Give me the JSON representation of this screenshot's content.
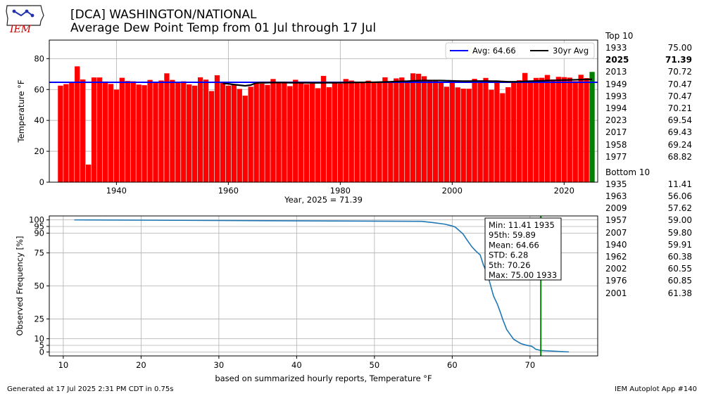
{
  "header": {
    "title_line1": "[DCA] WASHINGTON/NATIONAL",
    "title_line2": "Average Dew Point Temp from 01 Jul through 17 Jul"
  },
  "logo": {
    "text": "IEM"
  },
  "footer": {
    "generated": "Generated at 17 Jul 2025 2:31 PM CDT in 0.75s",
    "app": "IEM Autoplot App #140"
  },
  "top10": {
    "title": "Top 10",
    "rows": [
      {
        "year": "1933",
        "value": "75.00",
        "bold": false
      },
      {
        "year": "2025",
        "value": "71.39",
        "bold": true
      },
      {
        "year": "2013",
        "value": "70.72",
        "bold": false
      },
      {
        "year": "1949",
        "value": "70.47",
        "bold": false
      },
      {
        "year": "1993",
        "value": "70.47",
        "bold": false
      },
      {
        "year": "1994",
        "value": "70.21",
        "bold": false
      },
      {
        "year": "2023",
        "value": "69.54",
        "bold": false
      },
      {
        "year": "2017",
        "value": "69.43",
        "bold": false
      },
      {
        "year": "1958",
        "value": "69.24",
        "bold": false
      },
      {
        "year": "1977",
        "value": "68.82",
        "bold": false
      }
    ]
  },
  "bottom10": {
    "title": "Bottom 10",
    "rows": [
      {
        "year": "1935",
        "value": "11.41",
        "bold": false
      },
      {
        "year": "1963",
        "value": "56.06",
        "bold": false
      },
      {
        "year": "2009",
        "value": "57.62",
        "bold": false
      },
      {
        "year": "1957",
        "value": "59.00",
        "bold": false
      },
      {
        "year": "2007",
        "value": "59.80",
        "bold": false
      },
      {
        "year": "1940",
        "value": "59.91",
        "bold": false
      },
      {
        "year": "1962",
        "value": "60.38",
        "bold": false
      },
      {
        "year": "2002",
        "value": "60.55",
        "bold": false
      },
      {
        "year": "1976",
        "value": "60.85",
        "bold": false
      },
      {
        "year": "2001",
        "value": "61.38",
        "bold": false
      }
    ]
  },
  "chart_data": [
    {
      "type": "bar",
      "title": "",
      "xlabel": "Year, 2025 = 71.39",
      "ylabel": "Temperature °F",
      "xlim": [
        1928,
        2026
      ],
      "ylim": [
        0,
        92
      ],
      "xticks": [
        1940,
        1960,
        1980,
        2000,
        2020
      ],
      "yticks": [
        0,
        20,
        40,
        60,
        80
      ],
      "grid": true,
      "legend_position": "top-right",
      "bar_color": "#ff0000",
      "current_year": 2025,
      "current_year_color": "#008000",
      "years": [
        1930,
        1931,
        1932,
        1933,
        1934,
        1935,
        1936,
        1937,
        1938,
        1939,
        1940,
        1941,
        1942,
        1943,
        1944,
        1945,
        1946,
        1947,
        1948,
        1949,
        1950,
        1951,
        1952,
        1953,
        1954,
        1955,
        1956,
        1957,
        1958,
        1959,
        1960,
        1961,
        1962,
        1963,
        1964,
        1965,
        1966,
        1967,
        1968,
        1969,
        1970,
        1971,
        1972,
        1973,
        1974,
        1975,
        1976,
        1977,
        1978,
        1979,
        1980,
        1981,
        1982,
        1983,
        1984,
        1985,
        1986,
        1987,
        1988,
        1989,
        1990,
        1991,
        1992,
        1993,
        1994,
        1995,
        1996,
        1997,
        1998,
        1999,
        2000,
        2001,
        2002,
        2003,
        2004,
        2005,
        2006,
        2007,
        2008,
        2009,
        2010,
        2011,
        2012,
        2013,
        2014,
        2015,
        2016,
        2017,
        2018,
        2019,
        2020,
        2021,
        2022,
        2023,
        2024,
        2025
      ],
      "values": [
        62.5,
        63.5,
        64.2,
        75.0,
        66.5,
        11.41,
        67.8,
        67.8,
        65.2,
        63.6,
        59.91,
        67.6,
        65.5,
        65.3,
        63.2,
        62.8,
        66.2,
        64.2,
        65.8,
        70.47,
        66.2,
        64.8,
        65.3,
        63.3,
        62.5,
        67.9,
        66.4,
        59.0,
        69.24,
        64.9,
        62.5,
        63.0,
        60.38,
        56.06,
        61.8,
        64.0,
        63.8,
        63.0,
        66.8,
        64.5,
        64.0,
        62.2,
        66.3,
        65.0,
        63.5,
        63.8,
        60.85,
        68.82,
        61.5,
        64.2,
        63.8,
        66.8,
        65.8,
        65.0,
        64.5,
        65.7,
        64.5,
        65.2,
        67.9,
        65.0,
        67.2,
        67.8,
        65.5,
        70.47,
        70.21,
        68.6,
        66.2,
        65.4,
        64.5,
        61.8,
        65.9,
        61.38,
        60.55,
        60.5,
        66.9,
        65.2,
        67.5,
        59.8,
        64.3,
        57.62,
        61.5,
        64.5,
        66.0,
        70.72,
        64.8,
        67.5,
        67.6,
        69.43,
        66.5,
        68.2,
        68.0,
        67.7,
        65.4,
        69.54,
        67.4,
        71.39
      ],
      "series": [
        {
          "name": "Avg: 64.66",
          "color": "#0000ff",
          "y": 64.66
        },
        {
          "name": "30yr Avg",
          "color": "#000000",
          "x": [
            1959,
            1960,
            1961,
            1962,
            1963,
            1964,
            1965,
            1966,
            1967,
            1968,
            1969,
            1970,
            1971,
            1972,
            1973,
            1974,
            1975,
            1976,
            1977,
            1978,
            1979,
            1980,
            1981,
            1982,
            1983,
            1984,
            1985,
            1986,
            1987,
            1988,
            1989,
            1990,
            1991,
            1992,
            1993,
            1994,
            1995,
            1996,
            1997,
            1998,
            1999,
            2000,
            2001,
            2002,
            2003,
            2004,
            2005,
            2006,
            2007,
            2008,
            2009,
            2010,
            2011,
            2012,
            2013,
            2014,
            2015,
            2016,
            2017,
            2018,
            2019,
            2020,
            2021,
            2022,
            2023,
            2024,
            2025
          ],
          "y": [
            64.0,
            63.7,
            63.2,
            62.8,
            62.4,
            62.9,
            64.3,
            64.4,
            64.4,
            64.5,
            64.5,
            64.5,
            64.4,
            64.4,
            64.4,
            64.4,
            64.3,
            64.3,
            64.4,
            64.4,
            64.4,
            64.4,
            64.5,
            64.5,
            64.6,
            64.6,
            64.7,
            64.7,
            64.8,
            64.9,
            65.0,
            65.2,
            65.3,
            65.4,
            65.6,
            65.7,
            65.8,
            65.8,
            65.8,
            65.8,
            65.7,
            65.6,
            65.5,
            65.4,
            65.4,
            65.5,
            65.5,
            65.5,
            65.4,
            65.4,
            65.2,
            65.0,
            65.0,
            65.1,
            65.3,
            65.4,
            65.5,
            65.6,
            65.8,
            65.9,
            66.0,
            66.1,
            66.2,
            66.3,
            66.4,
            66.5,
            66.6
          ]
        }
      ]
    },
    {
      "type": "line",
      "title": "",
      "xlabel": "based on summarized hourly reports, Temperature °F",
      "ylabel": "Observed Frequency [%]",
      "xlim": [
        8.2,
        78.7
      ],
      "ylim": [
        -3,
        103
      ],
      "xticks": [
        10,
        20,
        30,
        40,
        50,
        60,
        70
      ],
      "yticks": [
        0,
        5,
        10,
        25,
        50,
        75,
        90,
        95,
        100
      ],
      "grid": true,
      "line_color": "#1f77b4",
      "marker_x": 71.39,
      "marker_color": "#008000",
      "x": [
        11.41,
        56.06,
        57.6,
        59.0,
        59.8,
        60.38,
        61.38,
        62.0,
        62.5,
        63.0,
        63.6,
        64.0,
        64.4,
        64.7,
        65.0,
        65.3,
        65.8,
        66.2,
        66.5,
        67.0,
        67.5,
        67.9,
        68.2,
        68.8,
        69.4,
        70.2,
        70.5,
        70.7,
        71.4,
        75.0
      ],
      "y": [
        100,
        98.9,
        97.9,
        96.8,
        95.7,
        94.6,
        89.4,
        84.0,
        79.8,
        76.6,
        73.4,
        66.0,
        60.6,
        55.3,
        48.9,
        42.5,
        36.2,
        29.8,
        24.5,
        17.0,
        12.8,
        9.6,
        8.5,
        6.4,
        5.3,
        4.3,
        3.2,
        2.1,
        1.1,
        0
      ],
      "stats": [
        {
          "label": "Min: 11.41 1935"
        },
        {
          "label": "95th: 59.89"
        },
        {
          "label": "Mean: 64.66"
        },
        {
          "label": "STD: 6.28"
        },
        {
          "label": "5th: 70.26"
        },
        {
          "label": "Max: 75.00 1933"
        }
      ]
    }
  ]
}
